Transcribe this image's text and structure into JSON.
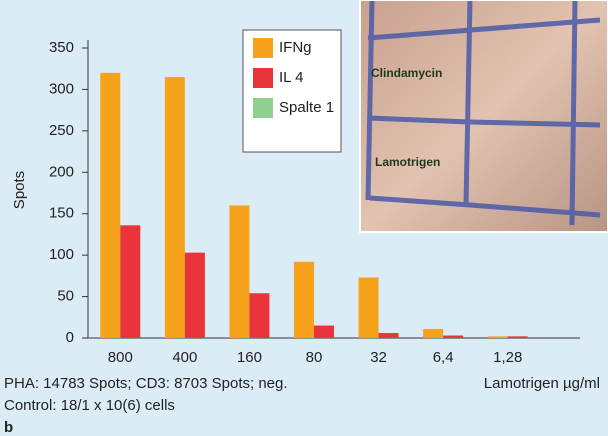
{
  "chart_data": {
    "type": "bar",
    "y_label": "Spots",
    "x_label": "Lamotrigen µg/ml",
    "categories": [
      "800",
      "400",
      "160",
      "80",
      "32",
      "6,4",
      "1,28"
    ],
    "series": [
      {
        "name": "IFNg",
        "color": "#f7a21b",
        "values": [
          320,
          315,
          160,
          92,
          73,
          11,
          2
        ]
      },
      {
        "name": "IL 4",
        "color": "#e8343a",
        "values": [
          136,
          103,
          54,
          15,
          6,
          3,
          2
        ]
      },
      {
        "name": "Spalte 1",
        "color": "#8fd08f",
        "values": [
          null,
          null,
          null,
          null,
          null,
          null,
          null
        ]
      }
    ],
    "ylim": [
      0,
      350
    ],
    "yticks": [
      0,
      50,
      100,
      150,
      200,
      250,
      300,
      350
    ],
    "legend": "upper-center",
    "notes": [
      "PHA: 14783 Spots; CD3: 8703 Spots; neg.",
      "Control: 18/1 x 10(6) cells"
    ],
    "panel": "b"
  },
  "photo": {
    "labels": [
      "Clindamycin",
      "Lamotrigen"
    ]
  }
}
